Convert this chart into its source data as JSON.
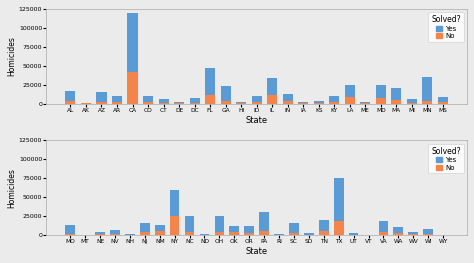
{
  "top_states": [
    "AL",
    "AK",
    "AZ",
    "AR",
    "CA",
    "CO",
    "CT",
    "DE",
    "DC",
    "FL",
    "GA",
    "HI",
    "ID",
    "IL",
    "IN",
    "IA",
    "KS",
    "KY",
    "LA",
    "ME",
    "MD",
    "MA",
    "MI",
    "MN",
    "MS"
  ],
  "top_no": [
    4000,
    500,
    2000,
    2500,
    42000,
    1500,
    500,
    300,
    500,
    12000,
    4000,
    500,
    1500,
    12000,
    3000,
    500,
    500,
    2500,
    9000,
    500,
    7000,
    5000,
    1000,
    3000,
    1500
  ],
  "top_yes": [
    13000,
    500,
    13000,
    8000,
    78000,
    8000,
    5500,
    1800,
    7000,
    35000,
    19000,
    1200,
    8000,
    22000,
    10000,
    1800,
    3000,
    7000,
    16000,
    2000,
    17000,
    15000,
    4500,
    32000,
    7000
  ],
  "bot_states": [
    "MO",
    "MT",
    "NE",
    "NV",
    "NH",
    "NJ",
    "NM",
    "NY",
    "NC",
    "ND",
    "OH",
    "OK",
    "OR",
    "PA",
    "RI",
    "SC",
    "SD",
    "TN",
    "TX",
    "UT",
    "VT",
    "VA",
    "WA",
    "WV",
    "WI",
    "WY"
  ],
  "bot_no": [
    2000,
    200,
    1000,
    2000,
    500,
    4000,
    5000,
    25000,
    4500,
    500,
    4500,
    3500,
    3000,
    5000,
    500,
    2500,
    500,
    6000,
    19000,
    500,
    200,
    3500,
    2500,
    1000,
    1000,
    200
  ],
  "bot_yes": [
    11000,
    400,
    3000,
    5000,
    1500,
    12000,
    9000,
    35000,
    21000,
    1000,
    21000,
    9000,
    9500,
    25000,
    1500,
    13000,
    1800,
    14000,
    57000,
    1800,
    500,
    15000,
    8500,
    3000,
    6500,
    400
  ],
  "color_yes": "#5b9bd5",
  "color_no": "#f4844a",
  "ylabel": "Homicides",
  "xlabel": "State",
  "ylim": [
    0,
    125000
  ],
  "yticks": [
    0,
    25000,
    50000,
    75000,
    100000,
    125000
  ],
  "legend_title": "Solved?",
  "legend_yes": "Yes",
  "legend_no": "No",
  "bg_color": "#ebebeb"
}
